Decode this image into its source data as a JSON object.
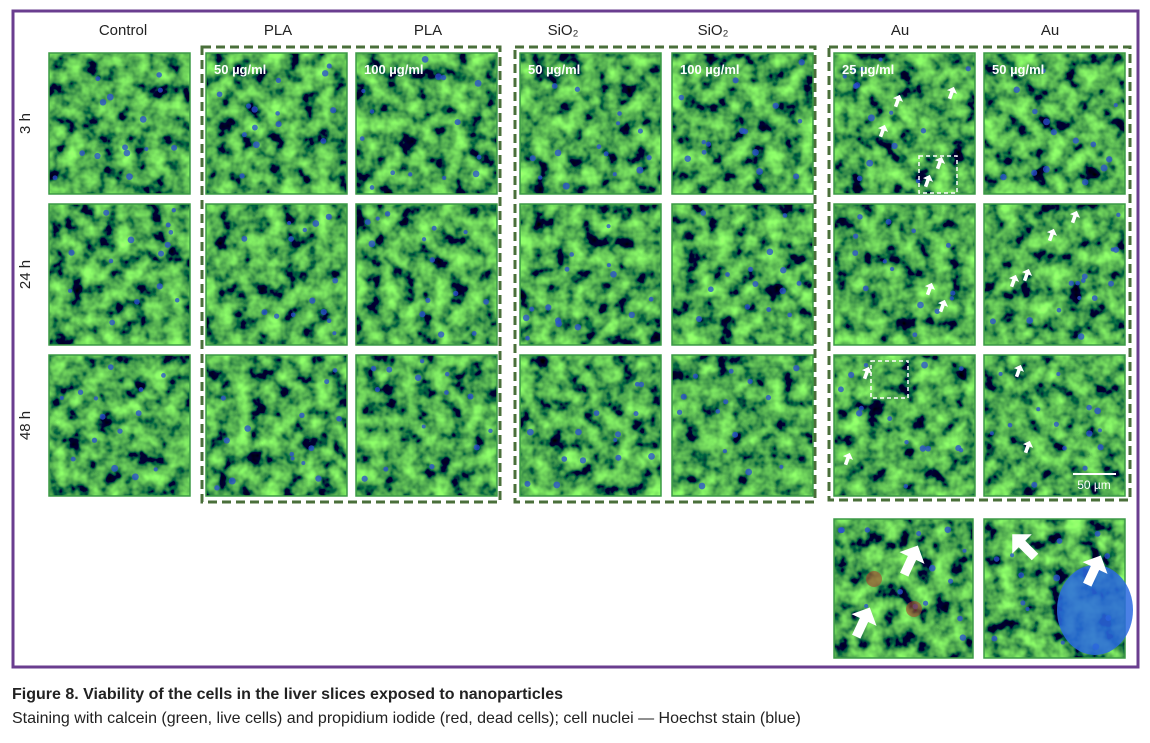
{
  "figure": {
    "column_headers": [
      "Control",
      "PLA",
      "PLA",
      "SiO₂",
      "SiO₂",
      "Au",
      "Au"
    ],
    "row_labels": [
      "3 h",
      "24 h",
      "48 h"
    ],
    "panel_labels": [
      "50 µg/ml",
      "100 µg/ml",
      "50 µg/ml",
      "100 µg/ml",
      "25 µg/ml",
      "50 µg/ml"
    ],
    "scale_bar": "50 µm"
  },
  "caption": {
    "title": "Figure 8. Viability of the cells in the liver slices exposed to nanoparticles",
    "text": "Staining with calcein (green, live cells) and propidium iodide (red, dead cells); cell nuclei — Hoechst stain (blue)"
  }
}
